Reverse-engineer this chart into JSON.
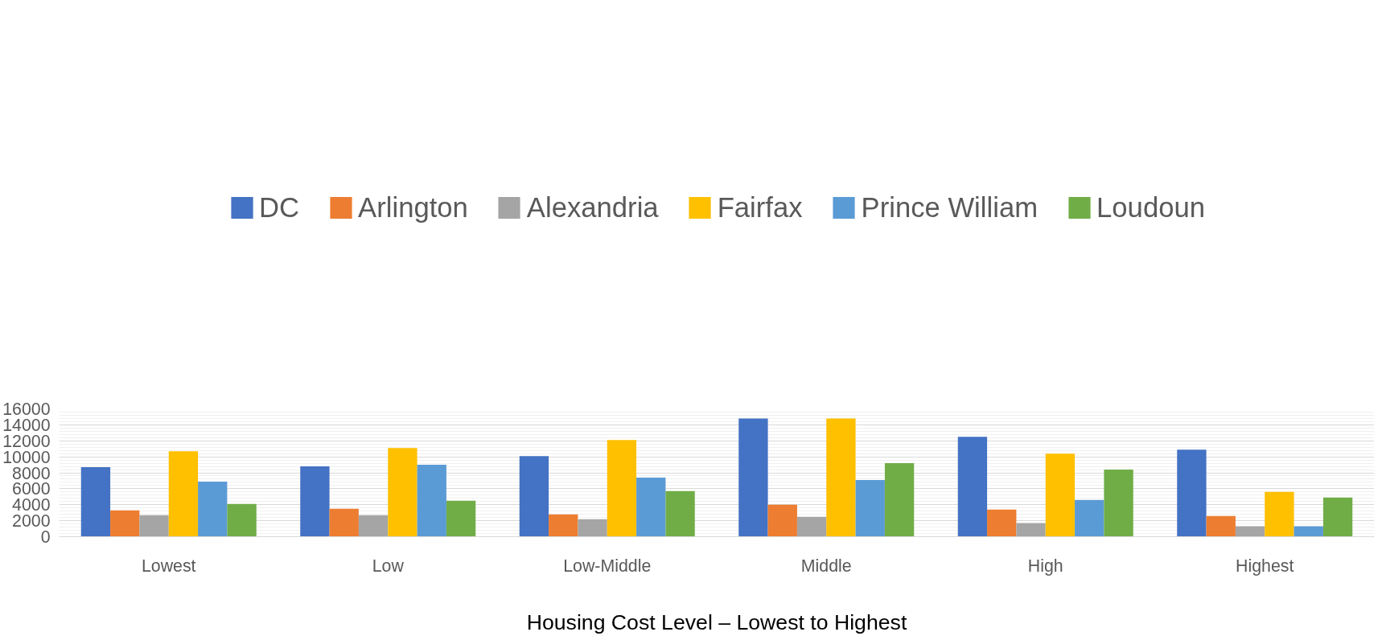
{
  "chart_data": {
    "type": "bar",
    "xlabel": "Housing Cost Level – Lowest to Highest",
    "categories": [
      "Lowest",
      "Low",
      "Low-Middle",
      "Middle",
      "High",
      "Highest"
    ],
    "series": [
      {
        "name": "DC",
        "color": "#4472c4",
        "values": [
          8700,
          8800,
          10100,
          14800,
          12500,
          10900
        ]
      },
      {
        "name": "Arlington",
        "color": "#ed7d31",
        "values": [
          3300,
          3500,
          2800,
          4000,
          3400,
          2600
        ]
      },
      {
        "name": "Alexandria",
        "color": "#a5a5a5",
        "values": [
          2700,
          2700,
          2200,
          2500,
          1700,
          1300
        ]
      },
      {
        "name": "Fairfax",
        "color": "#ffc000",
        "values": [
          10700,
          11100,
          12100,
          14800,
          10400,
          5600
        ]
      },
      {
        "name": "Prince William",
        "color": "#5b9bd5",
        "values": [
          6900,
          9000,
          7400,
          7100,
          4600,
          1300
        ]
      },
      {
        "name": "Loudoun",
        "color": "#70ad47",
        "values": [
          4100,
          4500,
          5700,
          9200,
          8400,
          4900
        ]
      }
    ],
    "ylim": [
      0,
      16000
    ],
    "yticks": [
      0,
      2000,
      4000,
      6000,
      8000,
      10000,
      12000,
      14000,
      16000
    ],
    "grid": "y",
    "legend": "top"
  }
}
